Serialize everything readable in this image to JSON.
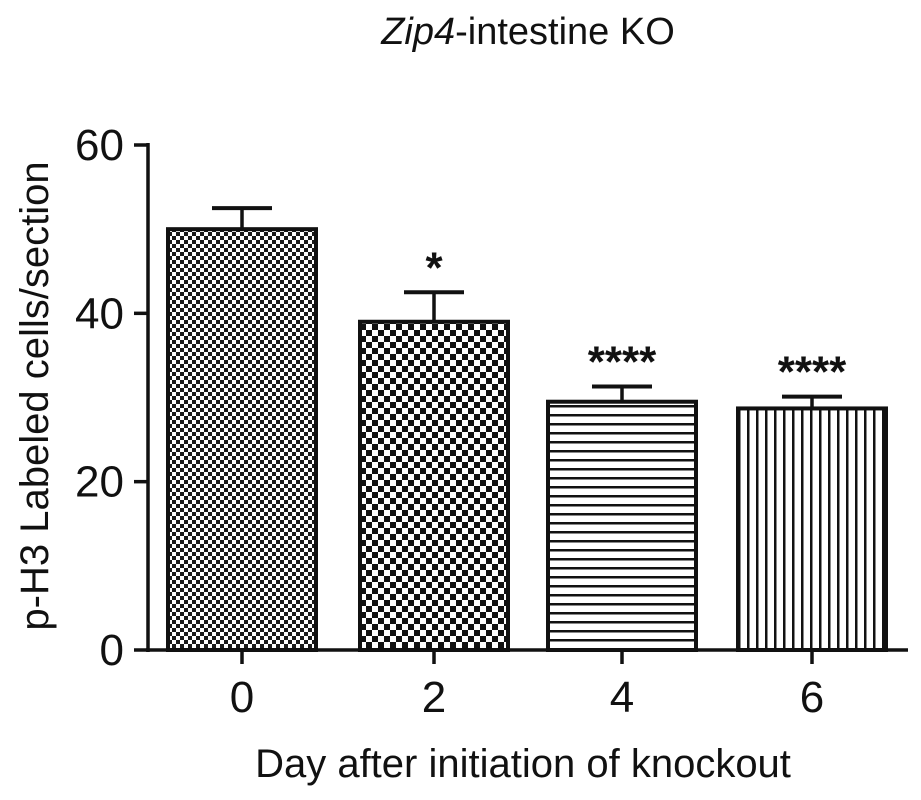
{
  "chart_data": {
    "type": "bar",
    "title_italic": "Zip4",
    "title_rest": "-intestine KO",
    "xlabel": "Day after initiation of knockout",
    "ylabel": "p-H3 Labeled cells/section",
    "categories": [
      "0",
      "2",
      "4",
      "6"
    ],
    "values": [
      50,
      39,
      29.5,
      28.7
    ],
    "errors": [
      2.5,
      3.5,
      1.8,
      1.4
    ],
    "significance": [
      "",
      "*",
      "****",
      "****"
    ],
    "ylim": [
      0,
      60
    ],
    "yticks": [
      0,
      20,
      40,
      60
    ],
    "ytick_labels": [
      "0",
      "20",
      "40",
      "60"
    ],
    "bar_patterns": [
      "fine-checker",
      "checker",
      "horizontal-lines",
      "vertical-lines"
    ],
    "grid": false,
    "legend": "none"
  }
}
